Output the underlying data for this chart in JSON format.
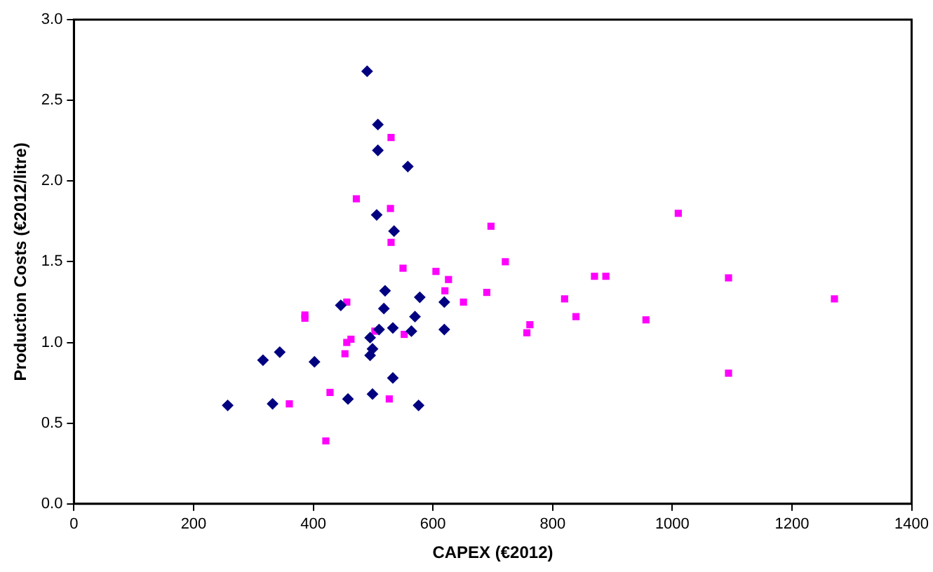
{
  "chart_data": {
    "type": "scatter",
    "xlabel": "CAPEX (€2012)",
    "ylabel": "Production Costs (€2012/litre)",
    "xlim": [
      0,
      1400
    ],
    "xticks": [
      0,
      200,
      400,
      600,
      800,
      1000,
      1200,
      1400
    ],
    "ylim": [
      0,
      3
    ],
    "yticks": [
      {
        "value": 0,
        "label": "0.0"
      },
      {
        "value": 0.5,
        "label": "0.5"
      },
      {
        "value": 1,
        "label": "1.0"
      },
      {
        "value": 1.5,
        "label": "1.5"
      },
      {
        "value": 2,
        "label": "2.0"
      },
      {
        "value": 2.5,
        "label": "2.5"
      },
      {
        "value": 3,
        "label": "3.0"
      }
    ],
    "grid": false,
    "legend": false,
    "series": [
      {
        "color": "#000080",
        "marker": "diamond",
        "x": [
          257,
          316,
          344,
          332,
          402,
          446,
          458,
          490,
          508,
          508,
          558,
          506,
          535,
          520,
          578,
          518,
          619,
          570,
          533,
          510,
          564,
          619,
          495,
          499,
          495,
          533,
          499,
          576
        ],
        "values": [
          0.61,
          0.89,
          0.94,
          0.62,
          0.88,
          1.23,
          0.65,
          2.68,
          2.35,
          2.19,
          2.09,
          1.79,
          1.69,
          1.32,
          1.28,
          1.21,
          1.25,
          1.16,
          1.09,
          1.08,
          1.07,
          1.08,
          1.03,
          0.96,
          0.92,
          0.78,
          0.68,
          0.61
        ]
      },
      {
        "color": "#ff00ff",
        "marker": "square",
        "x": [
          360,
          421,
          428,
          386,
          386,
          472,
          530,
          529,
          530,
          550,
          605,
          626,
          620,
          697,
          721,
          690,
          651,
          456,
          503,
          552,
          463,
          456,
          453,
          762,
          757,
          527,
          1010,
          870,
          889,
          1094,
          820,
          839,
          956,
          1271,
          1094
        ],
        "values": [
          0.62,
          0.39,
          0.69,
          1.17,
          1.15,
          1.89,
          2.27,
          1.83,
          1.62,
          1.46,
          1.44,
          1.39,
          1.32,
          1.72,
          1.5,
          1.31,
          1.25,
          1.25,
          1.07,
          1.05,
          1.02,
          1.0,
          0.93,
          1.11,
          1.06,
          0.65,
          1.8,
          1.41,
          1.41,
          1.4,
          1.27,
          1.16,
          1.14,
          1.27,
          0.81
        ]
      }
    ]
  }
}
